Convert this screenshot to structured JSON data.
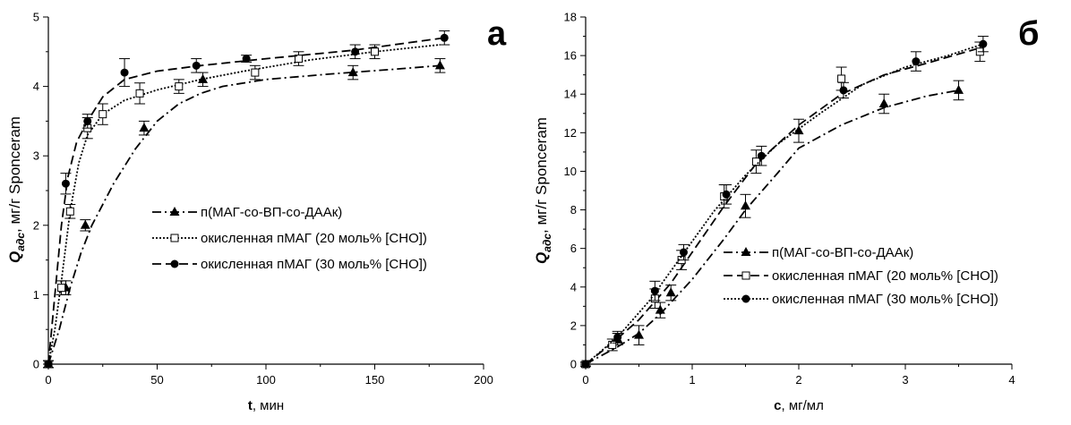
{
  "chart_data": [
    {
      "type": "line",
      "panel_label": "а",
      "xlabel_var": "t",
      "xlabel_unit": ", мин",
      "ylabel_main": "Q",
      "ylabel_sub": "адс",
      "ylabel_rest": ", мг/г Sponceram",
      "xlim": [
        0,
        200
      ],
      "ylim": [
        0,
        5
      ],
      "xticks": [
        0,
        50,
        100,
        150,
        200
      ],
      "yticks": [
        0,
        1,
        2,
        3,
        4,
        5
      ],
      "legend_position": "center",
      "series": [
        {
          "name": "п(МАГ-со-ВП-со-ДААк)",
          "marker": "triangle",
          "dash": "dashdot",
          "points": [
            [
              0,
              0
            ],
            [
              8,
              1.1
            ],
            [
              17,
              2.0
            ],
            [
              44,
              3.4
            ],
            [
              71,
              4.1
            ],
            [
              140,
              4.2
            ],
            [
              180,
              4.3
            ]
          ],
          "err": [
            0.05,
            0.1,
            0.08,
            0.1,
            0.1,
            0.1,
            0.1
          ],
          "curve": [
            [
              0,
              0
            ],
            [
              5,
              0.5
            ],
            [
              10,
              1.1
            ],
            [
              15,
              1.6
            ],
            [
              20,
              2.0
            ],
            [
              30,
              2.6
            ],
            [
              40,
              3.1
            ],
            [
              50,
              3.5
            ],
            [
              60,
              3.75
            ],
            [
              70,
              3.9
            ],
            [
              80,
              4.0
            ],
            [
              100,
              4.1
            ],
            [
              130,
              4.18
            ],
            [
              160,
              4.25
            ],
            [
              180,
              4.3
            ]
          ]
        },
        {
          "name": "окисленная пМАГ (20 моль% [CHO])",
          "marker": "square-open",
          "dash": "dotted",
          "points": [
            [
              0,
              0
            ],
            [
              6,
              1.1
            ],
            [
              10,
              2.2
            ],
            [
              18,
              3.4
            ],
            [
              25,
              3.6
            ],
            [
              42,
              3.9
            ],
            [
              60,
              4.0
            ],
            [
              95,
              4.2
            ],
            [
              115,
              4.4
            ],
            [
              150,
              4.5
            ]
          ],
          "err": [
            0.05,
            0.1,
            0.1,
            0.15,
            0.15,
            0.15,
            0.1,
            0.1,
            0.1,
            0.1
          ],
          "curve": [
            [
              0,
              0
            ],
            [
              3,
              0.5
            ],
            [
              6,
              1.2
            ],
            [
              10,
              2.2
            ],
            [
              14,
              2.9
            ],
            [
              18,
              3.3
            ],
            [
              25,
              3.6
            ],
            [
              35,
              3.8
            ],
            [
              50,
              3.95
            ],
            [
              70,
              4.1
            ],
            [
              90,
              4.22
            ],
            [
              120,
              4.38
            ],
            [
              150,
              4.5
            ],
            [
              180,
              4.6
            ]
          ]
        },
        {
          "name": "окисленная пМАГ (30 моль% [CHO])",
          "marker": "circle",
          "dash": "dashed",
          "points": [
            [
              0,
              0
            ],
            [
              8,
              2.6
            ],
            [
              18,
              3.5
            ],
            [
              35,
              4.2
            ],
            [
              68,
              4.3
            ],
            [
              91,
              4.4
            ],
            [
              141,
              4.5
            ],
            [
              182,
              4.7
            ]
          ],
          "err": [
            0.05,
            0.15,
            0.1,
            0.2,
            0.1,
            0.05,
            0.1,
            0.1
          ],
          "curve": [
            [
              0,
              0
            ],
            [
              3,
              1.0
            ],
            [
              6,
              2.0
            ],
            [
              9,
              2.7
            ],
            [
              13,
              3.2
            ],
            [
              18,
              3.5
            ],
            [
              25,
              3.85
            ],
            [
              35,
              4.1
            ],
            [
              50,
              4.22
            ],
            [
              70,
              4.3
            ],
            [
              100,
              4.4
            ],
            [
              140,
              4.52
            ],
            [
              182,
              4.7
            ]
          ]
        }
      ]
    },
    {
      "type": "line",
      "panel_label": "б",
      "xlabel_var": "c",
      "xlabel_unit": ", мг/мл",
      "ylabel_main": "Q",
      "ylabel_sub": "адс",
      "ylabel_rest": ", мг/г Sponceram",
      "xlim": [
        0,
        4
      ],
      "ylim": [
        0,
        18
      ],
      "xticks": [
        0,
        1,
        2,
        3,
        4
      ],
      "yticks": [
        0,
        2,
        4,
        6,
        8,
        10,
        12,
        14,
        16,
        18
      ],
      "legend_position": "bottom-right",
      "series": [
        {
          "name": "п(МАГ-со-ВП-со-ДААк)",
          "marker": "triangle",
          "dash": "dashdot",
          "points": [
            [
              0,
              0
            ],
            [
              0.3,
              1.3
            ],
            [
              0.5,
              1.5
            ],
            [
              0.7,
              2.8
            ],
            [
              0.8,
              3.7
            ],
            [
              1.5,
              8.2
            ],
            [
              2.0,
              12.1
            ],
            [
              2.8,
              13.5
            ],
            [
              3.5,
              14.2
            ]
          ],
          "err": [
            0.1,
            0.3,
            0.5,
            0.4,
            0.4,
            0.6,
            0.6,
            0.5,
            0.5
          ],
          "curve": [
            [
              0,
              0
            ],
            [
              0.3,
              0.9
            ],
            [
              0.5,
              1.6
            ],
            [
              0.7,
              2.6
            ],
            [
              1.0,
              4.4
            ],
            [
              1.3,
              6.5
            ],
            [
              1.5,
              8.0
            ],
            [
              1.8,
              9.9
            ],
            [
              2.0,
              11.2
            ],
            [
              2.4,
              12.4
            ],
            [
              2.8,
              13.3
            ],
            [
              3.2,
              13.9
            ],
            [
              3.5,
              14.2
            ]
          ]
        },
        {
          "name": "окисленная пМАГ (20 моль% [CHO])",
          "marker": "square-open",
          "dash": "dashed",
          "points": [
            [
              0,
              0
            ],
            [
              0.25,
              1.0
            ],
            [
              0.65,
              3.4
            ],
            [
              0.9,
              5.4
            ],
            [
              1.3,
              8.7
            ],
            [
              1.6,
              10.5
            ],
            [
              2.4,
              14.8
            ],
            [
              3.7,
              16.2
            ]
          ],
          "err": [
            0.1,
            0.3,
            0.5,
            0.5,
            0.6,
            0.6,
            0.6,
            0.5
          ],
          "curve": [
            [
              0,
              0
            ],
            [
              0.25,
              1.1
            ],
            [
              0.5,
              2.3
            ],
            [
              0.8,
              4.2
            ],
            [
              1.1,
              6.6
            ],
            [
              1.3,
              8.2
            ],
            [
              1.6,
              10.4
            ],
            [
              2.0,
              12.4
            ],
            [
              2.4,
              14.0
            ],
            [
              2.8,
              15.0
            ],
            [
              3.2,
              15.6
            ],
            [
              3.7,
              16.4
            ]
          ]
        },
        {
          "name": "окисленная пМАГ (30 моль% [CHO])",
          "marker": "circle",
          "dash": "dotted",
          "points": [
            [
              0,
              0
            ],
            [
              0.3,
              1.4
            ],
            [
              0.65,
              3.8
            ],
            [
              0.92,
              5.8
            ],
            [
              1.32,
              8.8
            ],
            [
              1.65,
              10.8
            ],
            [
              2.42,
              14.2
            ],
            [
              3.1,
              15.7
            ],
            [
              3.73,
              16.6
            ]
          ],
          "err": [
            0.1,
            0.3,
            0.5,
            0.4,
            0.5,
            0.5,
            0.4,
            0.5,
            0.4
          ],
          "curve": [
            [
              0,
              0
            ],
            [
              0.3,
              1.4
            ],
            [
              0.6,
              3.3
            ],
            [
              0.9,
              5.6
            ],
            [
              1.2,
              7.9
            ],
            [
              1.5,
              9.8
            ],
            [
              1.8,
              11.4
            ],
            [
              2.2,
              13.0
            ],
            [
              2.6,
              14.5
            ],
            [
              3.0,
              15.4
            ],
            [
              3.4,
              16.0
            ],
            [
              3.73,
              16.6
            ]
          ]
        }
      ]
    }
  ]
}
